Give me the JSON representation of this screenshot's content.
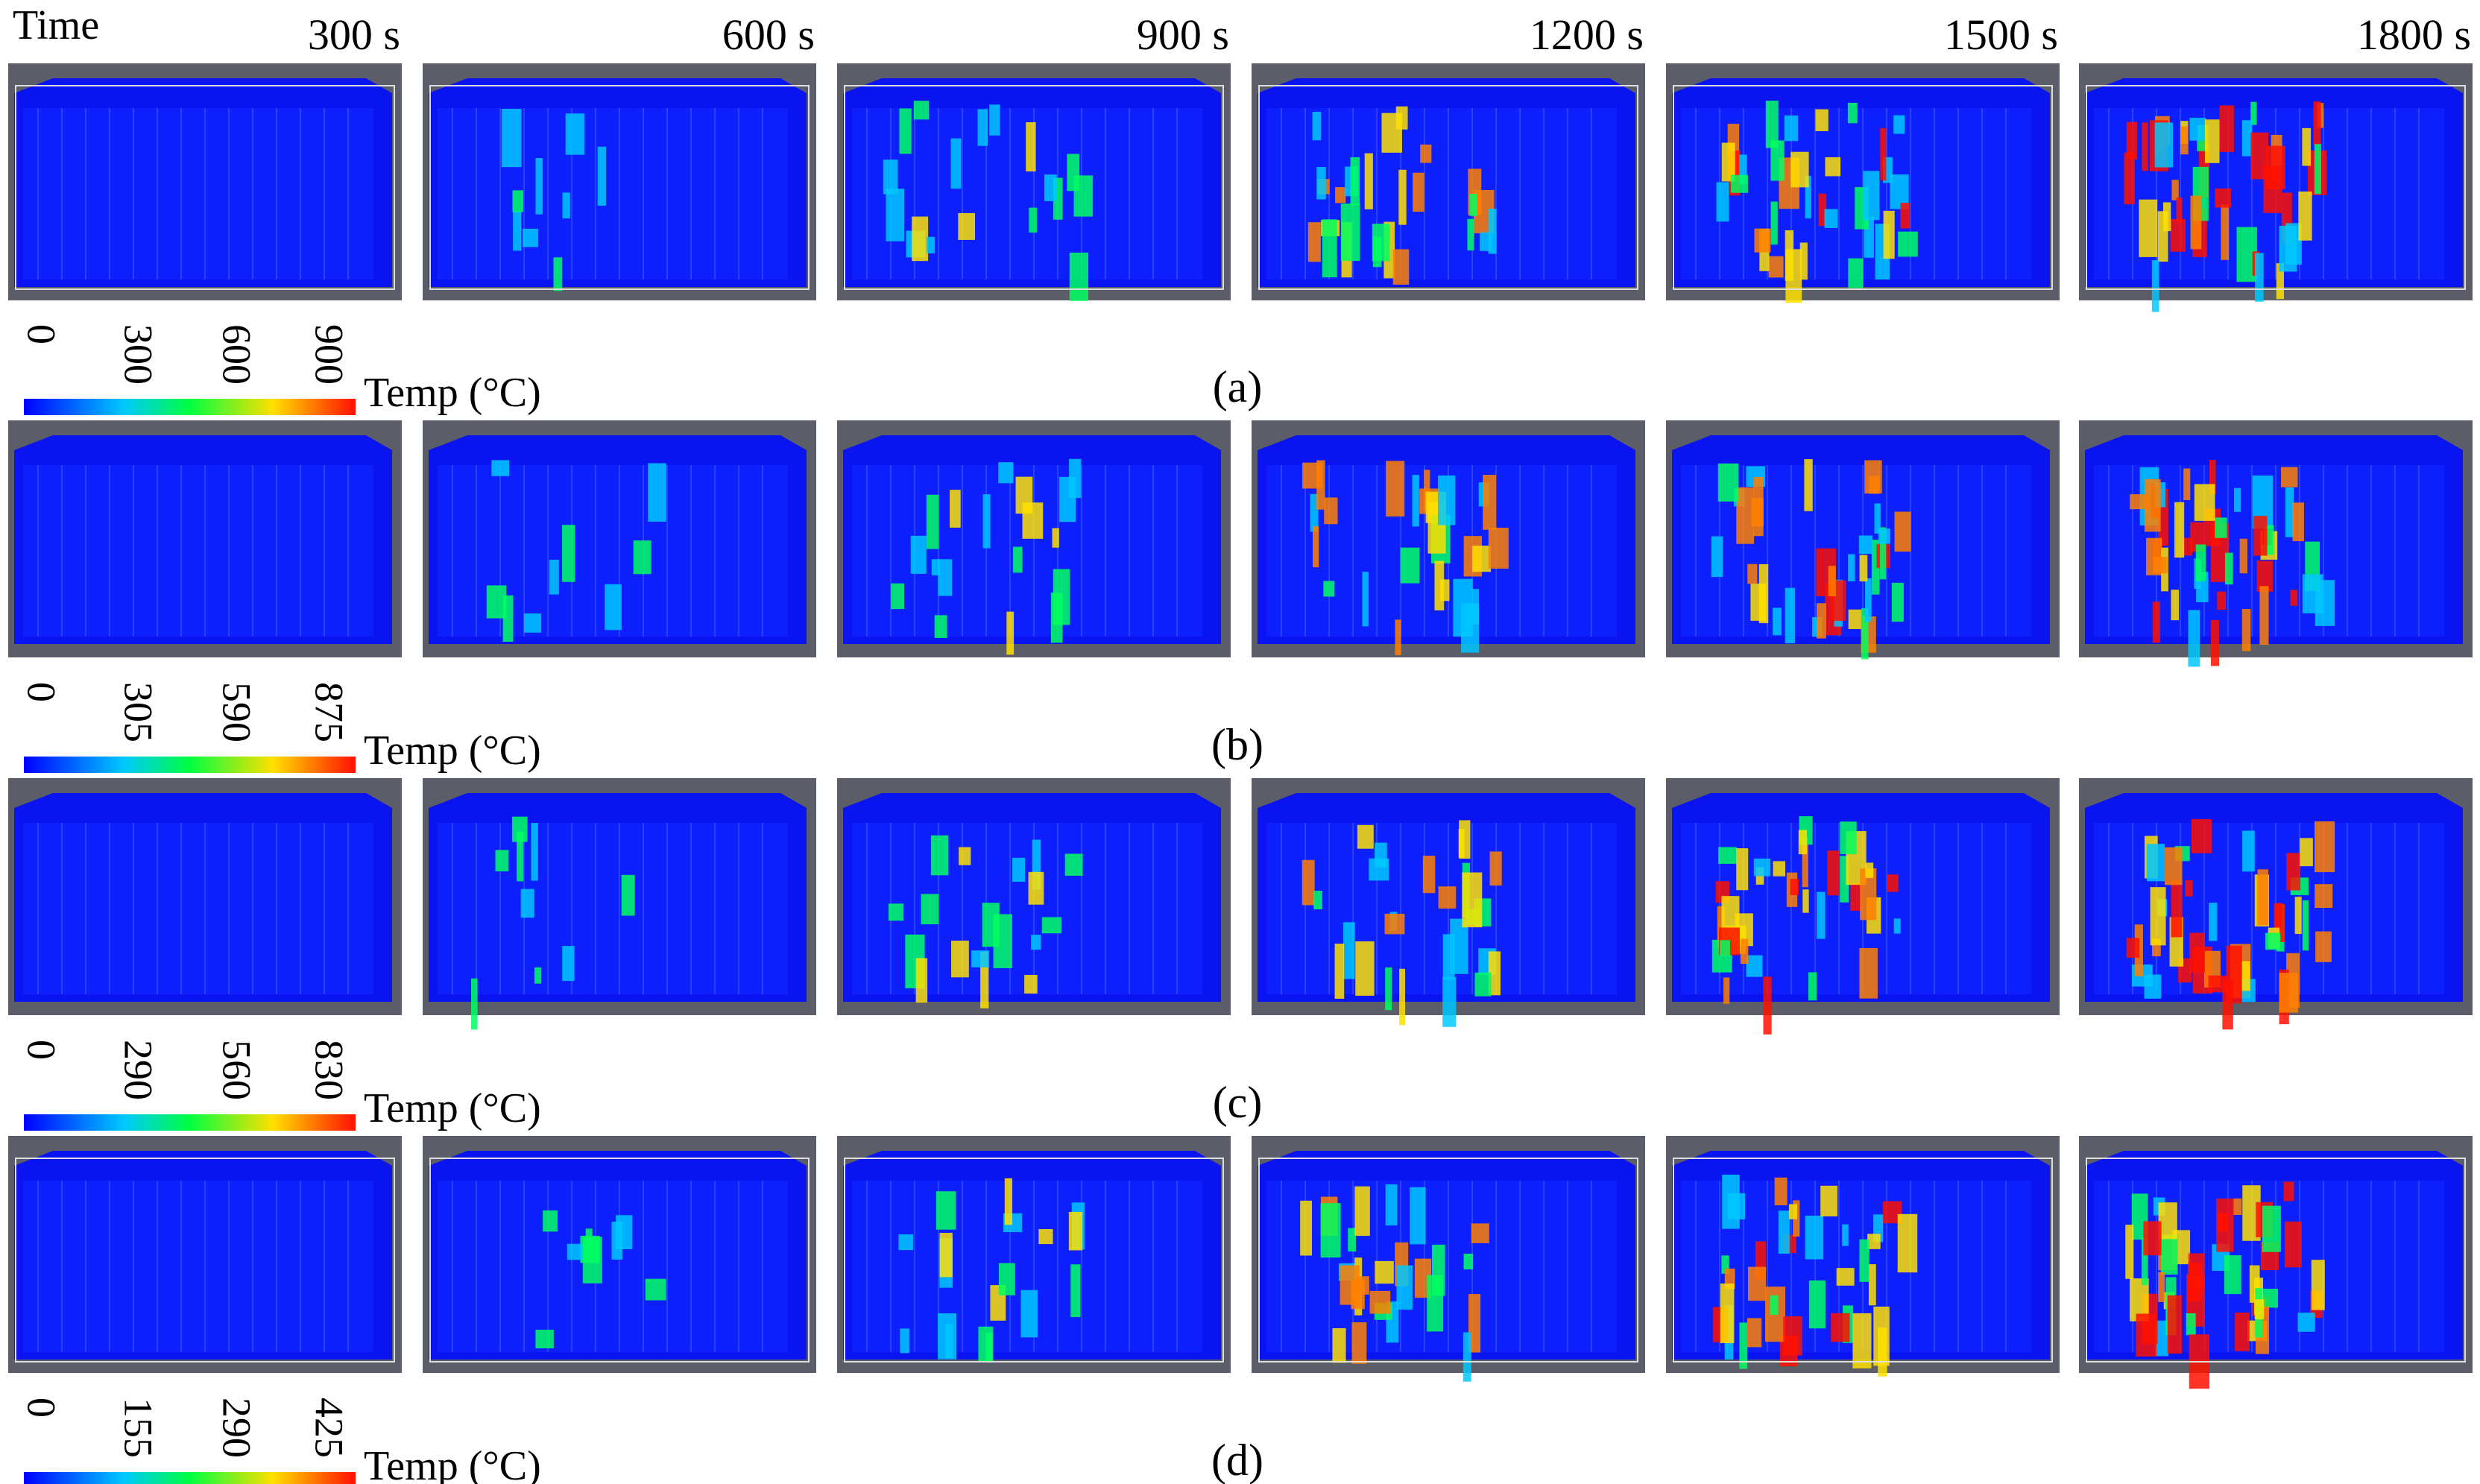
{
  "header": {
    "time_label": "Time",
    "times": [
      "300 s",
      "600 s",
      "900 s",
      "1200 s",
      "1500 s",
      "1800 s"
    ]
  },
  "rows": [
    {
      "label": "(a)",
      "scale": {
        "title": "Temp (°C)",
        "ticks": [
          0,
          300,
          600,
          900
        ]
      }
    },
    {
      "label": "(b)",
      "scale": {
        "title": "Temp (°C)",
        "ticks": [
          0,
          305,
          590,
          875
        ]
      }
    },
    {
      "label": "(c)",
      "scale": {
        "title": "Temp (°C)",
        "ticks": [
          0,
          290,
          560,
          830
        ]
      }
    },
    {
      "label": "(d)",
      "scale": {
        "title": "Temp (°C)",
        "ticks": [
          0,
          155,
          290,
          425
        ]
      }
    }
  ]
}
